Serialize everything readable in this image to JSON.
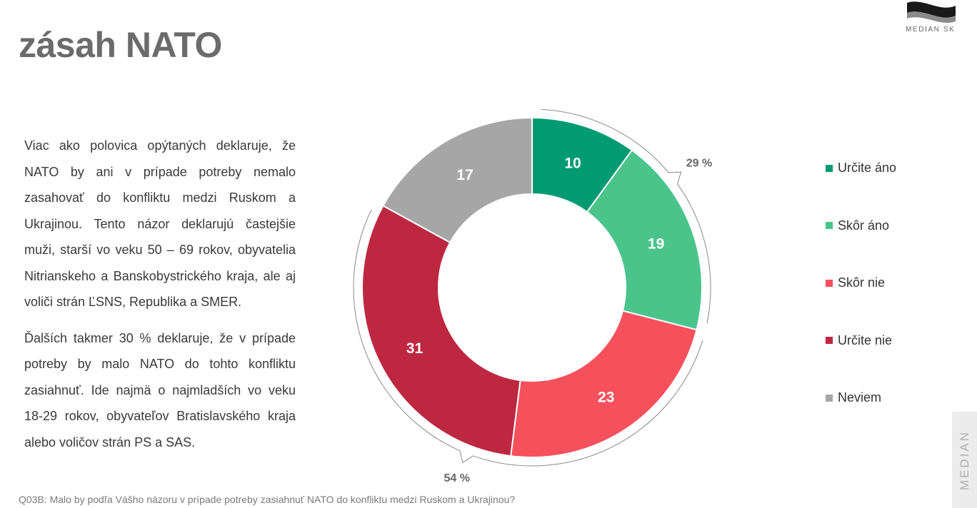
{
  "header": {
    "title": "zásah NATO",
    "logo_text": "MEDIAN SK"
  },
  "text": {
    "paragraph1": "Viac ako polovica opýtaných deklaruje, že NATO by ani v prípade potreby nemalo zasahovať do konfliktu medzi Ruskom a Ukrajinou. Tento názor deklarujú častejšie muži, starší vo veku 50 – 69 rokov, obyvatelia Nitrianskeho a Banskobystrického kraja, ale aj voliči strán ĽSNS, Republika a SMER.",
    "paragraph2": "Ďalších takmer 30 % deklaruje, že v prípade potreby by malo NATO do tohto konfliktu zasiahnuť. Ide najmä o najmladších vo veku 18-29 rokov, obyvateľov Bratislavského kraja alebo voličov strán PS a SAS."
  },
  "chart_data": {
    "type": "pie",
    "variant": "donut",
    "categories": [
      "Určite áno",
      "Skôr áno",
      "Skôr nie",
      "Určite nie",
      "Neviem"
    ],
    "values": [
      10,
      19,
      23,
      31,
      17
    ],
    "colors": [
      "#009b72",
      "#4ac48b",
      "#f6505d",
      "#bd2840",
      "#a6a6a6"
    ],
    "label_colors": [
      "#ffffff",
      "#ffffff",
      "#ffffff",
      "#ffffff",
      "#ffffff"
    ],
    "brackets": [
      {
        "label": "29 %",
        "covers": [
          "Určite áno",
          "Skôr áno"
        ]
      },
      {
        "label": "54 %",
        "covers": [
          "Skôr nie",
          "Určite nie"
        ]
      }
    ],
    "legend_position": "right"
  },
  "footnote": "Q03B: Malo by podľa Vášho názoru v prípade potreby zasiahnuť NATO do konfliktu medzi Ruskom a Ukrajinou?",
  "side_tab": "MEDIAN"
}
